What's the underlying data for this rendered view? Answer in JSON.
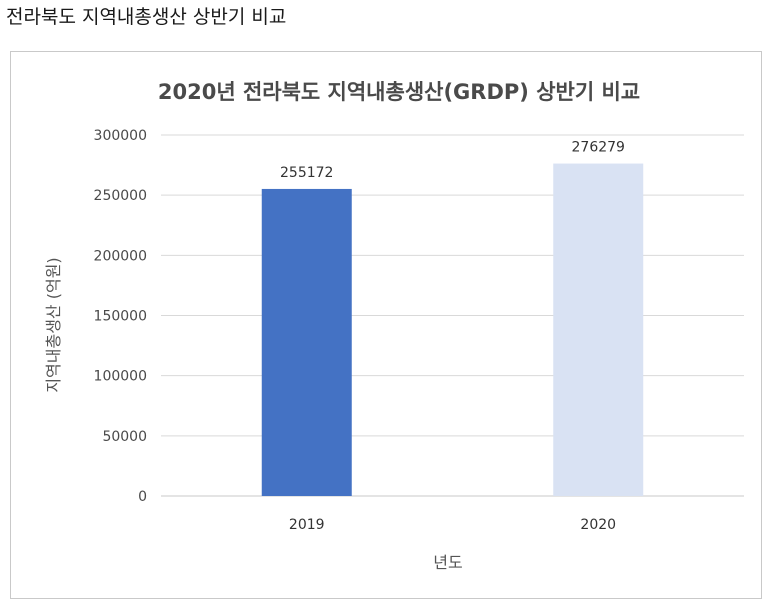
{
  "page": {
    "heading": "전라북도 지역내총생산 상반기 비교"
  },
  "chart_data": {
    "type": "bar",
    "title": "2020년 전라북도 지역내총생산(GRDP) 상반기 비교",
    "xlabel": "년도",
    "ylabel": "지역내총생산 (억원)",
    "categories": [
      "2019",
      "2020"
    ],
    "values": [
      255172,
      276279
    ],
    "data_labels": [
      "255172",
      "276279"
    ],
    "bar_colors": [
      "#4472C4",
      "#D9E2F3"
    ],
    "ylim": [
      0,
      300000
    ],
    "yticks": [
      0,
      50000,
      100000,
      150000,
      200000,
      250000,
      300000
    ],
    "ytick_labels": [
      "0",
      "50000",
      "100000",
      "150000",
      "200000",
      "250000",
      "300000"
    ],
    "grid": true,
    "legend": "none"
  }
}
